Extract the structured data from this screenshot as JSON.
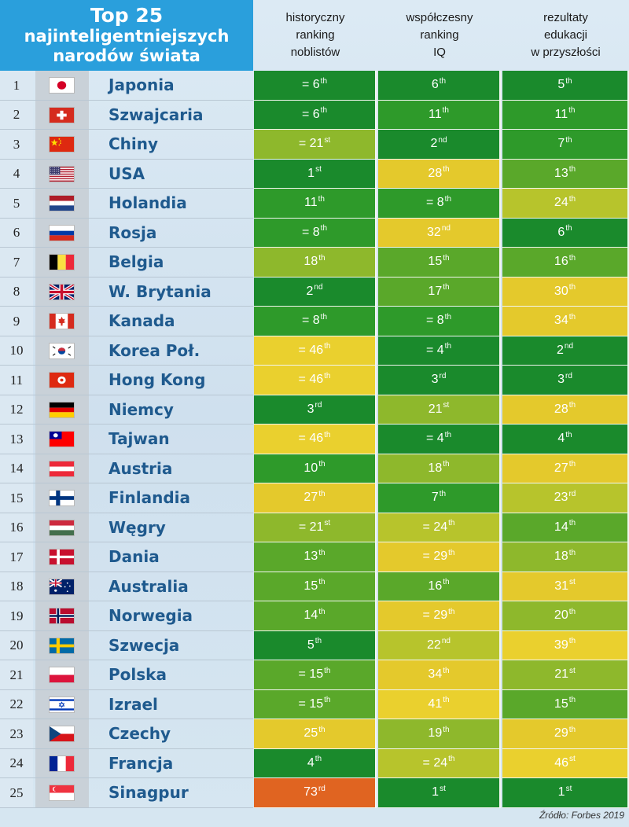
{
  "title": {
    "line1": "Top 25",
    "line2": "najinteligentniejszych",
    "line3": "narodów świata"
  },
  "source": "Źródło: Forbes 2019",
  "chart_data": {
    "type": "table",
    "columns": [
      {
        "lines": [
          "historyczny",
          "ranking",
          "noblistów"
        ]
      },
      {
        "lines": [
          "współczesny",
          "ranking",
          "IQ"
        ]
      },
      {
        "lines": [
          "rezultaty",
          "edukacji",
          "w przyszłości"
        ]
      }
    ],
    "rows": [
      {
        "rank": "1",
        "country": "Japonia",
        "flag": "japan-flag-icon",
        "values": [
          [
            "= 6",
            "th"
          ],
          [
            "6",
            "th"
          ],
          [
            "5",
            "th"
          ]
        ]
      },
      {
        "rank": "2",
        "country": "Szwajcaria",
        "flag": "switzerland-flag-icon",
        "values": [
          [
            "= 6",
            "th"
          ],
          [
            "11",
            "th"
          ],
          [
            "11",
            "th"
          ]
        ]
      },
      {
        "rank": "3",
        "country": "Chiny",
        "flag": "china-flag-icon",
        "values": [
          [
            "= 21",
            "st"
          ],
          [
            "2",
            "nd"
          ],
          [
            "7",
            "th"
          ]
        ]
      },
      {
        "rank": "4",
        "country": "USA",
        "flag": "usa-flag-icon",
        "values": [
          [
            "1",
            "st"
          ],
          [
            "28",
            "th"
          ],
          [
            "13",
            "th"
          ]
        ]
      },
      {
        "rank": "5",
        "country": "Holandia",
        "flag": "netherlands-flag-icon",
        "values": [
          [
            "11",
            "th"
          ],
          [
            "= 8",
            "th"
          ],
          [
            "24",
            "th"
          ]
        ]
      },
      {
        "rank": "6",
        "country": "Rosja",
        "flag": "russia-flag-icon",
        "values": [
          [
            "= 8",
            "th"
          ],
          [
            "32",
            "nd"
          ],
          [
            "6",
            "th"
          ]
        ]
      },
      {
        "rank": "7",
        "country": "Belgia",
        "flag": "belgium-flag-icon",
        "values": [
          [
            "18",
            "th"
          ],
          [
            "15",
            "th"
          ],
          [
            "16",
            "th"
          ]
        ]
      },
      {
        "rank": "8",
        "country": "W. Brytania",
        "flag": "uk-flag-icon",
        "values": [
          [
            "2",
            "nd"
          ],
          [
            "17",
            "th"
          ],
          [
            "30",
            "th"
          ]
        ]
      },
      {
        "rank": "9",
        "country": "Kanada",
        "flag": "canada-flag-icon",
        "values": [
          [
            "= 8",
            "th"
          ],
          [
            "= 8",
            "th"
          ],
          [
            "34",
            "th"
          ]
        ]
      },
      {
        "rank": "10",
        "country": "Korea Poł.",
        "flag": "south-korea-flag-icon",
        "values": [
          [
            "= 46",
            "th"
          ],
          [
            "= 4",
            "th"
          ],
          [
            "2",
            "nd"
          ]
        ]
      },
      {
        "rank": "11",
        "country": "Hong Kong",
        "flag": "hong-kong-flag-icon",
        "values": [
          [
            "= 46",
            "th"
          ],
          [
            "3",
            "rd"
          ],
          [
            "3",
            "rd"
          ]
        ]
      },
      {
        "rank": "12",
        "country": "Niemcy",
        "flag": "germany-flag-icon",
        "values": [
          [
            "3",
            "rd"
          ],
          [
            "21",
            "st"
          ],
          [
            "28",
            "th"
          ]
        ]
      },
      {
        "rank": "13",
        "country": "Tajwan",
        "flag": "taiwan-flag-icon",
        "values": [
          [
            "= 46",
            "th"
          ],
          [
            "= 4",
            "th"
          ],
          [
            "4",
            "th"
          ]
        ]
      },
      {
        "rank": "14",
        "country": "Austria",
        "flag": "austria-flag-icon",
        "values": [
          [
            "10",
            "th"
          ],
          [
            "18",
            "th"
          ],
          [
            "27",
            "th"
          ]
        ]
      },
      {
        "rank": "15",
        "country": "Finlandia",
        "flag": "finland-flag-icon",
        "values": [
          [
            "27",
            "th"
          ],
          [
            "7",
            "th"
          ],
          [
            "23",
            "rd"
          ]
        ]
      },
      {
        "rank": "16",
        "country": "Węgry",
        "flag": "hungary-flag-icon",
        "values": [
          [
            "= 21",
            "st"
          ],
          [
            "= 24",
            "th"
          ],
          [
            "14",
            "th"
          ]
        ]
      },
      {
        "rank": "17",
        "country": "Dania",
        "flag": "denmark-flag-icon",
        "values": [
          [
            "13",
            "th"
          ],
          [
            "= 29",
            "th"
          ],
          [
            "18",
            "th"
          ]
        ]
      },
      {
        "rank": "18",
        "country": "Australia",
        "flag": "australia-flag-icon",
        "values": [
          [
            "15",
            "th"
          ],
          [
            "16",
            "th"
          ],
          [
            "31",
            "st"
          ]
        ]
      },
      {
        "rank": "19",
        "country": "Norwegia",
        "flag": "norway-flag-icon",
        "values": [
          [
            "14",
            "th"
          ],
          [
            "= 29",
            "th"
          ],
          [
            "20",
            "th"
          ]
        ]
      },
      {
        "rank": "20",
        "country": "Szwecja",
        "flag": "sweden-flag-icon",
        "values": [
          [
            "5",
            "th"
          ],
          [
            "22",
            "nd"
          ],
          [
            "39",
            "th"
          ]
        ]
      },
      {
        "rank": "21",
        "country": "Polska",
        "flag": "poland-flag-icon",
        "values": [
          [
            "= 15",
            "th"
          ],
          [
            "34",
            "th"
          ],
          [
            "21",
            "st"
          ]
        ]
      },
      {
        "rank": "22",
        "country": "Izrael",
        "flag": "israel-flag-icon",
        "values": [
          [
            "= 15",
            "th"
          ],
          [
            "41",
            "th"
          ],
          [
            "15",
            "th"
          ]
        ]
      },
      {
        "rank": "23",
        "country": "Czechy",
        "flag": "czech-flag-icon",
        "values": [
          [
            "25",
            "th"
          ],
          [
            "19",
            "th"
          ],
          [
            "29",
            "th"
          ]
        ]
      },
      {
        "rank": "24",
        "country": "Francja",
        "flag": "france-flag-icon",
        "values": [
          [
            "4",
            "th"
          ],
          [
            "= 24",
            "th"
          ],
          [
            "46",
            "st"
          ]
        ]
      },
      {
        "rank": "25",
        "country": "Sinagpur",
        "flag": "singapore-flag-icon",
        "values": [
          [
            "73",
            "rd"
          ],
          [
            "1",
            "st"
          ],
          [
            "1",
            "st"
          ]
        ]
      }
    ],
    "color_scale": {
      "best": "#1a8a2c",
      "mid": "#a8c42c",
      "poor": "#e8c62a",
      "worst": "#e06421"
    }
  }
}
